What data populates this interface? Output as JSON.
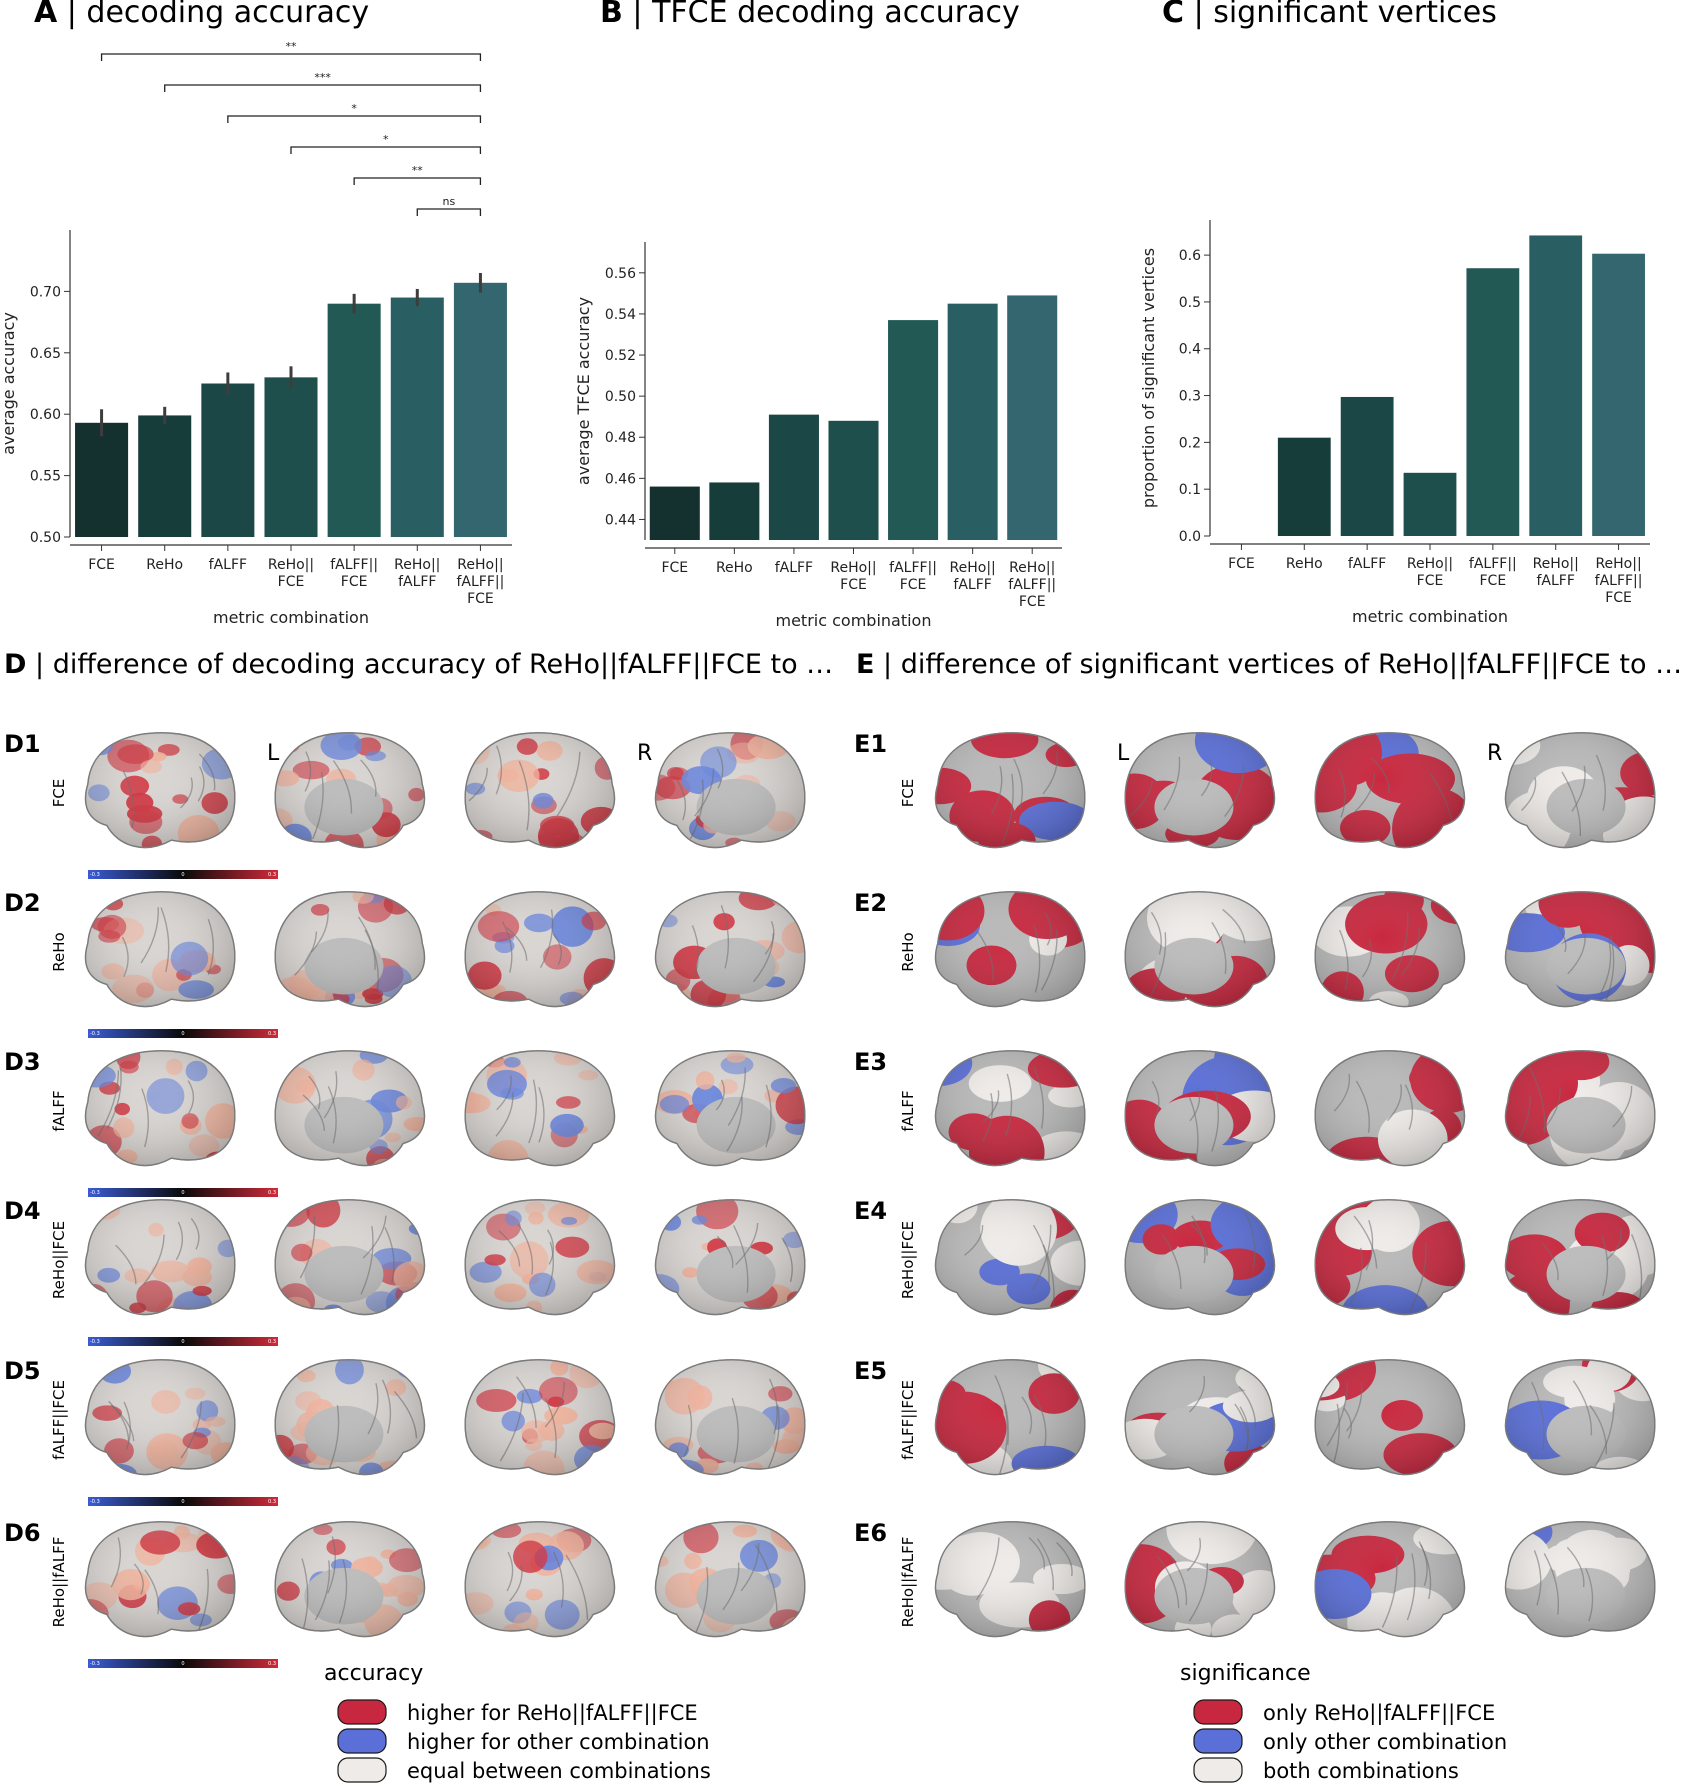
{
  "panels": {
    "A": {
      "letter": "A",
      "title": "decoding accuracy"
    },
    "B": {
      "letter": "B",
      "title": "TFCE decoding accuracy"
    },
    "C": {
      "letter": "C",
      "title": "significant vertices"
    },
    "D": {
      "letter": "D",
      "title": "difference of decoding accuracy of ReHo||fALFF||FCE to …"
    },
    "E": {
      "letter": "E",
      "title": "difference of significant vertices of ReHo||fALFF||FCE to …"
    }
  },
  "chart_data": [
    {
      "type": "bar",
      "panel": "A",
      "categories": [
        "FCE",
        "ReHo",
        "fALFF",
        "ReHo||\nFCE",
        "fALFF||\nFCE",
        "ReHo||\nfALFF",
        "ReHo||\nfALFF||\nFCE"
      ],
      "values": [
        0.593,
        0.599,
        0.625,
        0.63,
        0.69,
        0.695,
        0.707
      ],
      "errors": [
        0.011,
        0.007,
        0.009,
        0.009,
        0.008,
        0.007,
        0.008
      ],
      "xlabel": "metric combination",
      "ylabel": "average accuracy",
      "ylim": [
        0.5,
        0.75
      ],
      "yticks": [
        0.5,
        0.55,
        0.6,
        0.65,
        0.7
      ],
      "ytick_labels": [
        "0.50",
        "0.55",
        "0.60",
        "0.65",
        "0.70"
      ],
      "significance": [
        {
          "from": 0,
          "to": 6,
          "label": "**"
        },
        {
          "from": 1,
          "to": 6,
          "label": "***"
        },
        {
          "from": 2,
          "to": 6,
          "label": "*"
        },
        {
          "from": 3,
          "to": 6,
          "label": "*"
        },
        {
          "from": 4,
          "to": 6,
          "label": "**"
        },
        {
          "from": 5,
          "to": 6,
          "label": "ns"
        }
      ],
      "colors": [
        "#14312f",
        "#173d3b",
        "#1b4846",
        "#1e4f4c",
        "#225955",
        "#295f62",
        "#33666e"
      ]
    },
    {
      "type": "bar",
      "panel": "B",
      "categories": [
        "FCE",
        "ReHo",
        "fALFF",
        "ReHo||\nFCE",
        "fALFF||\nFCE",
        "ReHo||\nfALFF",
        "ReHo||\nfALFF||\nFCE"
      ],
      "values": [
        0.456,
        0.458,
        0.491,
        0.488,
        0.537,
        0.545,
        0.549
      ],
      "xlabel": "metric combination",
      "ylabel": "average TFCE accuracy",
      "ylim": [
        0.43,
        0.575
      ],
      "yticks": [
        0.44,
        0.46,
        0.48,
        0.5,
        0.52,
        0.54,
        0.56
      ],
      "ytick_labels": [
        "0.44",
        "0.46",
        "0.48",
        "0.50",
        "0.52",
        "0.54",
        "0.56"
      ],
      "colors": [
        "#14312f",
        "#173d3b",
        "#1b4846",
        "#1e4f4c",
        "#225955",
        "#295f62",
        "#33666e"
      ]
    },
    {
      "type": "bar",
      "panel": "C",
      "categories": [
        "FCE",
        "ReHo",
        "fALFF",
        "ReHo||\nFCE",
        "fALFF||\nFCE",
        "ReHo||\nfALFF",
        "ReHo||\nfALFF||\nFCE"
      ],
      "values": [
        0.0,
        0.21,
        0.297,
        0.135,
        0.572,
        0.642,
        0.603
      ],
      "xlabel": "metric combination",
      "ylabel": "proportion of significant vertices",
      "ylim": [
        0.0,
        0.675
      ],
      "yticks": [
        0.0,
        0.1,
        0.2,
        0.3,
        0.4,
        0.5,
        0.6
      ],
      "ytick_labels": [
        "0.0",
        "0.1",
        "0.2",
        "0.3",
        "0.4",
        "0.5",
        "0.6"
      ],
      "colors": [
        "#14312f",
        "#173d3b",
        "#1b4846",
        "#1e4f4c",
        "#225955",
        "#295f62",
        "#33666e"
      ]
    }
  ],
  "brain_rows_D": [
    {
      "id": "D1",
      "label": "FCE"
    },
    {
      "id": "D2",
      "label": "ReHo"
    },
    {
      "id": "D3",
      "label": "fALFF"
    },
    {
      "id": "D4",
      "label": "ReHo||FCE"
    },
    {
      "id": "D5",
      "label": "fALFF||FCE"
    },
    {
      "id": "D6",
      "label": "ReHo||fALFF"
    }
  ],
  "brain_rows_E": [
    {
      "id": "E1",
      "label": "FCE"
    },
    {
      "id": "E2",
      "label": "ReHo"
    },
    {
      "id": "E3",
      "label": "fALFF"
    },
    {
      "id": "E4",
      "label": "ReHo||FCE"
    },
    {
      "id": "E5",
      "label": "fALFF||FCE"
    },
    {
      "id": "E6",
      "label": "ReHo||fALFF"
    }
  ],
  "hemisphere_labels": {
    "left": "L",
    "right": "R"
  },
  "colorbar_ticks": [
    "-0.3",
    "0",
    "0.3"
  ],
  "legend_D": {
    "title": "accuracy",
    "items": [
      {
        "label": "higher for ReHo||fALFF||FCE",
        "color": "#c8283f"
      },
      {
        "label": "higher for other combination",
        "color": "#5a6fd8"
      },
      {
        "label": "equal between combinations",
        "color": "#eeebe8"
      }
    ]
  },
  "legend_E": {
    "title": "significance",
    "items": [
      {
        "label": "only ReHo||fALFF||FCE",
        "color": "#c8283f"
      },
      {
        "label": "only other combination",
        "color": "#5a6fd8"
      },
      {
        "label": "both combinations",
        "color": "#eeebe8"
      }
    ]
  },
  "palette": {
    "red": "#c8283f",
    "blue": "#5a6fd8",
    "neutral": "#eeebe8",
    "cortex_gray": "#bdbdbd",
    "dark_outline": "#3a3a3a"
  }
}
